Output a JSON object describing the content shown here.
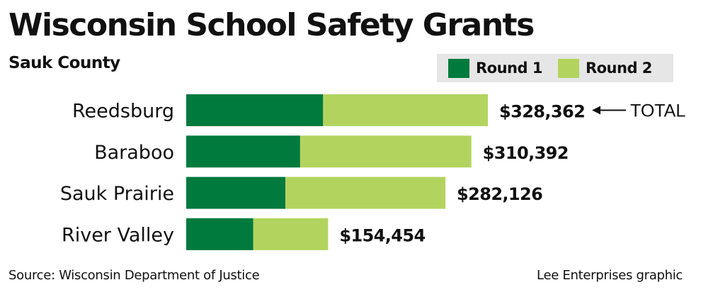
{
  "header": {
    "title": "Wisconsin School Safety Grants",
    "subtitle": "Sauk County"
  },
  "legend": {
    "items": [
      {
        "label": "Round 1",
        "color": "#007a3d"
      },
      {
        "label": "Round 2",
        "color": "#b2d45e"
      }
    ]
  },
  "annotation": {
    "arrow_label": "TOTAL"
  },
  "footer": {
    "source": "Source: Wisconsin Department of Justice",
    "credit": "Lee Enterprises graphic"
  },
  "chart_data": {
    "type": "bar",
    "orientation": "horizontal",
    "stacked": true,
    "title": "Wisconsin School Safety Grants",
    "subtitle": "Sauk County",
    "categories": [
      "Reedsburg",
      "Baraboo",
      "Sauk Prairie",
      "River Valley"
    ],
    "series": [
      {
        "name": "Round 1",
        "color": "#007a3d",
        "values": [
          149000,
          124000,
          108000,
          73000
        ]
      },
      {
        "name": "Round 2",
        "color": "#b2d45e",
        "values": [
          179362,
          186392,
          174126,
          81454
        ]
      }
    ],
    "totals": [
      328362,
      310392,
      282126,
      154454
    ],
    "total_labels": [
      "$328,362",
      "$310,392",
      "$282,126",
      "$154,454"
    ],
    "legend_position": "top-right",
    "grid": false,
    "xlim": [
      0,
      328362
    ]
  }
}
